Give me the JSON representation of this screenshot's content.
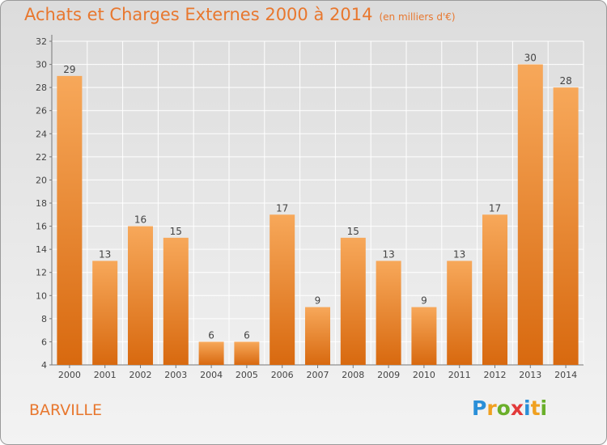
{
  "chart_data": {
    "type": "bar",
    "title": "Achats et Charges Externes 2000 à 2014",
    "subtitle": "(en milliers d'€)",
    "categories": [
      "2000",
      "2001",
      "2002",
      "2003",
      "2004",
      "2005",
      "2006",
      "2007",
      "2008",
      "2009",
      "2010",
      "2011",
      "2012",
      "2013",
      "2014"
    ],
    "values": [
      29,
      13,
      16,
      15,
      6,
      6,
      17,
      9,
      15,
      13,
      9,
      13,
      17,
      30,
      28
    ],
    "ylim": [
      4,
      32
    ],
    "yticks": [
      4,
      6,
      8,
      10,
      12,
      14,
      16,
      18,
      20,
      22,
      24,
      26,
      28,
      30,
      32
    ],
    "grid": true,
    "bar_color": "#e8822e"
  },
  "commune": "BARVILLE",
  "logo": {
    "letters": [
      "P",
      "r",
      "o",
      "x",
      "i",
      "t",
      "i"
    ],
    "colors": [
      "#2a8fd8",
      "#f0a020",
      "#6aaf2a",
      "#e23a3a",
      "#2a8fd8",
      "#f0a020",
      "#6aaf2a"
    ]
  },
  "colors": {
    "accent": "#e8772e"
  }
}
